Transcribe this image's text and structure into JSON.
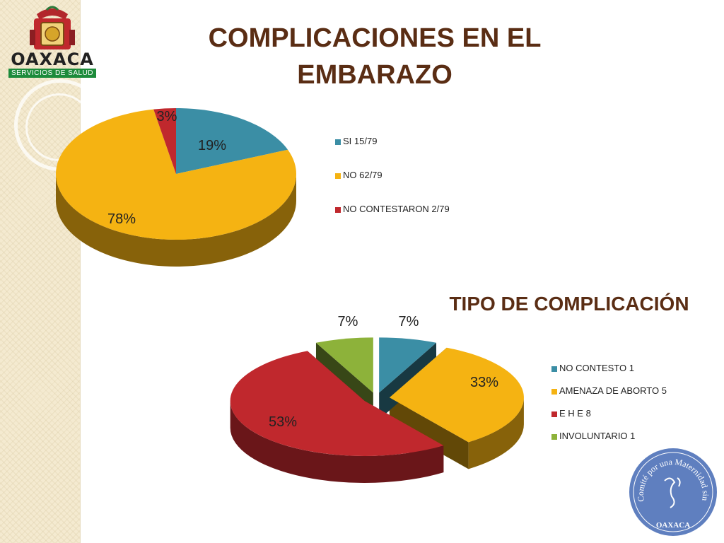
{
  "slide": {
    "title": "COMPLICACIONES EN EL EMBARAZO",
    "title_line1": "COMPLICACIONES EN EL",
    "title_line2": "EMBARAZO",
    "logo_word": "OAXACA",
    "logo_sub": "SERVICIOS DE SALUD",
    "seal_arc": "Comité por una Maternidad sin riesgos",
    "seal_bottom": "OAXACA"
  },
  "chart_data": [
    {
      "type": "pie",
      "title": "COMPLICACIONES EN EL EMBARAZO",
      "legend_position": "right",
      "series": [
        {
          "name": "SI   15/79",
          "value": 19,
          "label": "19%",
          "color": "#3b8ea5"
        },
        {
          "name": "NO   62/79",
          "value": 78,
          "label": "78%",
          "color": "#f5b312"
        },
        {
          "name": "NO CONTESTARON  2/79",
          "value": 3,
          "label": "3%",
          "color": "#c0282d"
        }
      ]
    },
    {
      "type": "pie",
      "title": "TIPO DE COMPLICACIÓN",
      "legend_position": "right",
      "exploded": true,
      "series": [
        {
          "name": "NO CONTESTO   1",
          "value": 7,
          "label": "7%",
          "color": "#3b8ea5"
        },
        {
          "name": "AMENAZA DE ABORTO  5",
          "value": 33,
          "label": "33%",
          "color": "#f5b312"
        },
        {
          "name": "E H E   8",
          "value": 53,
          "label": "53%",
          "color": "#c0282d"
        },
        {
          "name": "INVOLUNTARIO  1",
          "value": 7,
          "label": "7%",
          "color": "#8db23a"
        }
      ]
    }
  ]
}
